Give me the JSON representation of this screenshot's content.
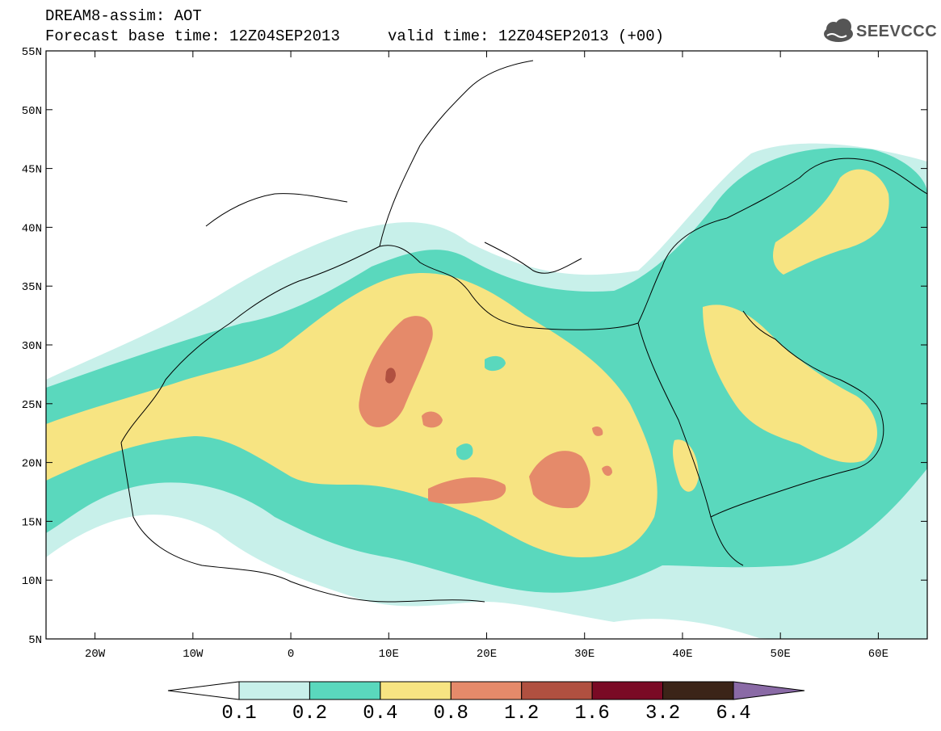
{
  "header": {
    "title": "DREAM8-assim: AOT",
    "forecast_base": "Forecast base time: 12Z04SEP2013",
    "valid_time": "valid time: 12Z04SEP2013 (+00)"
  },
  "logo": {
    "text": "SEEVCCC",
    "icon": "cloud-logo-icon"
  },
  "map": {
    "lon_labels": [
      "20W",
      "10W",
      "0",
      "10E",
      "20E",
      "30E",
      "40E",
      "50E",
      "60E"
    ],
    "lat_labels": [
      "55N",
      "50N",
      "45N",
      "40N",
      "35N",
      "30N",
      "25N",
      "20N",
      "15N",
      "10N",
      "5N"
    ],
    "lon_range": [
      -25,
      65
    ],
    "lat_range": [
      5,
      55
    ]
  },
  "colorbar": {
    "labels": [
      "0.1",
      "0.2",
      "0.4",
      "0.8",
      "1.2",
      "1.6",
      "3.2",
      "6.4"
    ],
    "colors": [
      "#ffffff",
      "#c8f0ea",
      "#5ad8bd",
      "#f7e482",
      "#e58a6a",
      "#b05040",
      "#7a0a25",
      "#3b2418",
      "#8a6aa6"
    ]
  }
}
